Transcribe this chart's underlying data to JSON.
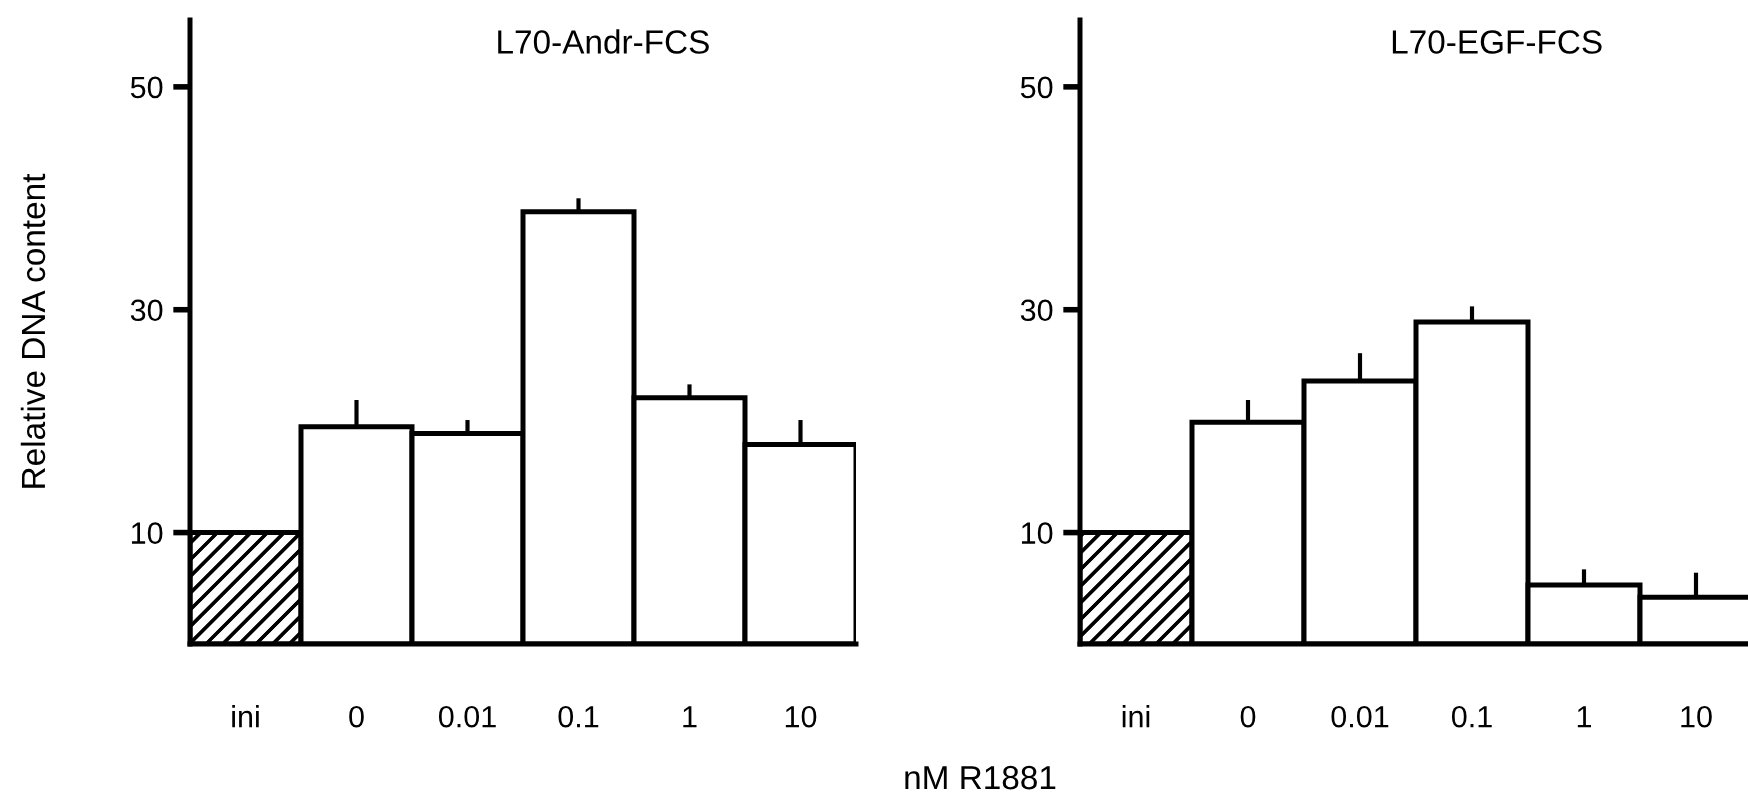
{
  "chart_data": [
    {
      "type": "bar",
      "title": "L70-Andr-FCS",
      "ylabel": "Relative DNA content",
      "xlabel": "nM R1881",
      "categories": [
        "ini",
        "0",
        "0.01",
        "0.1",
        "1",
        "10"
      ],
      "values": [
        10,
        19.5,
        18.9,
        38.8,
        22.1,
        17.9
      ],
      "errors": [
        null,
        [
          19.5,
          21.9
        ],
        [
          18.9,
          20.1
        ],
        [
          38.8,
          40.0
        ],
        [
          22.1,
          23.3
        ],
        [
          17.9,
          20.1
        ]
      ],
      "colors": [
        "#000000",
        "#ffffff",
        "#ffffff",
        "#ffffff",
        "#ffffff",
        "#ffffff"
      ],
      "ylim": [
        0,
        56
      ],
      "yticks": [
        10,
        30,
        50
      ],
      "grid": false,
      "legend": false
    },
    {
      "type": "bar",
      "title": "L70-EGF-FCS",
      "categories": [
        "ini",
        "0",
        "0.01",
        "0.1",
        "1",
        "10"
      ],
      "values": [
        10,
        19.9,
        23.6,
        28.9,
        5.3,
        4.2
      ],
      "errors": [
        null,
        [
          19.9,
          21.9
        ],
        [
          23.6,
          26.1
        ],
        [
          28.9,
          30.3
        ],
        [
          5.3,
          6.7
        ],
        [
          4.2,
          6.4
        ]
      ],
      "colors": [
        "#000000",
        "#ffffff",
        "#ffffff",
        "#ffffff",
        "#ffffff",
        "#ffffff"
      ],
      "ylim": [
        0,
        56
      ],
      "yticks": [
        10,
        30,
        50
      ],
      "grid": false,
      "legend": false
    }
  ]
}
